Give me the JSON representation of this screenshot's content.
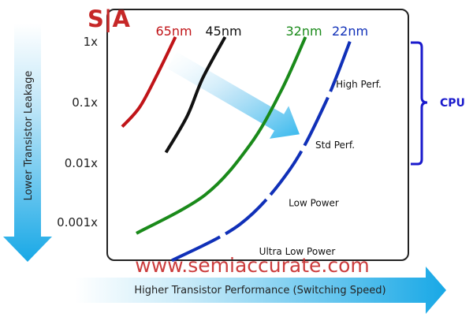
{
  "logo": "S|A",
  "watermark": "www.semiaccurate.com",
  "colors": {
    "n65": "#c01418",
    "n45": "#111111",
    "n32": "#1a8a1a",
    "n22": "#1030b8",
    "arrow": "#2ab4ec",
    "brace": "#1a1acc",
    "watermark": "#c62828"
  },
  "chart_data": {
    "type": "line",
    "title": "",
    "xlabel": "Higher Transistor Performance (Switching Speed)",
    "ylabel": "Lower Transistor Leakage",
    "y_scale": "log",
    "y_ticks": [
      "1x",
      "0.1x",
      "0.01x",
      "0.001x"
    ],
    "grid": false,
    "series": [
      {
        "name": "65nm",
        "color_key": "n65",
        "dashed": false,
        "points": [
          [
            0.0,
            0.04
          ],
          [
            0.15,
            0.085
          ],
          [
            0.3,
            0.3
          ],
          [
            0.45,
            1.2
          ]
        ]
      },
      {
        "name": "45nm",
        "color_key": "n45",
        "dashed": false,
        "points": [
          [
            0.37,
            0.015
          ],
          [
            0.55,
            0.06
          ],
          [
            0.68,
            0.25
          ],
          [
            0.87,
            1.2
          ]
        ]
      },
      {
        "name": "32nm",
        "color_key": "n32",
        "dashed": false,
        "points": [
          [
            0.12,
            0.0007
          ],
          [
            0.7,
            0.003
          ],
          [
            1.08,
            0.02
          ],
          [
            1.34,
            0.15
          ],
          [
            1.55,
            1.2
          ]
        ]
      },
      {
        "name": "22nm",
        "color_key": "n22",
        "dashed": true,
        "points": [
          [
            0.42,
            0.00025
          ],
          [
            1.0,
            0.001
          ],
          [
            1.42,
            0.008
          ],
          [
            1.72,
            0.1
          ],
          [
            1.94,
            1.2
          ]
        ]
      }
    ],
    "annotations": [
      {
        "text": "High Perf.",
        "x": 2.0,
        "y": 0.2
      },
      {
        "text": "Std Perf.",
        "x": 1.8,
        "y": 0.02
      },
      {
        "text": "Low Power",
        "x": 1.62,
        "y": 0.0022
      },
      {
        "text": "Ultra Low Power",
        "x": 1.48,
        "y": 0.00035
      }
    ],
    "bracket": {
      "label": "CPU",
      "y_range": [
        0.012,
        1.6
      ]
    },
    "trend_arrow": {
      "from": [
        0.42,
        0.5
      ],
      "to": [
        1.5,
        0.03
      ]
    }
  }
}
